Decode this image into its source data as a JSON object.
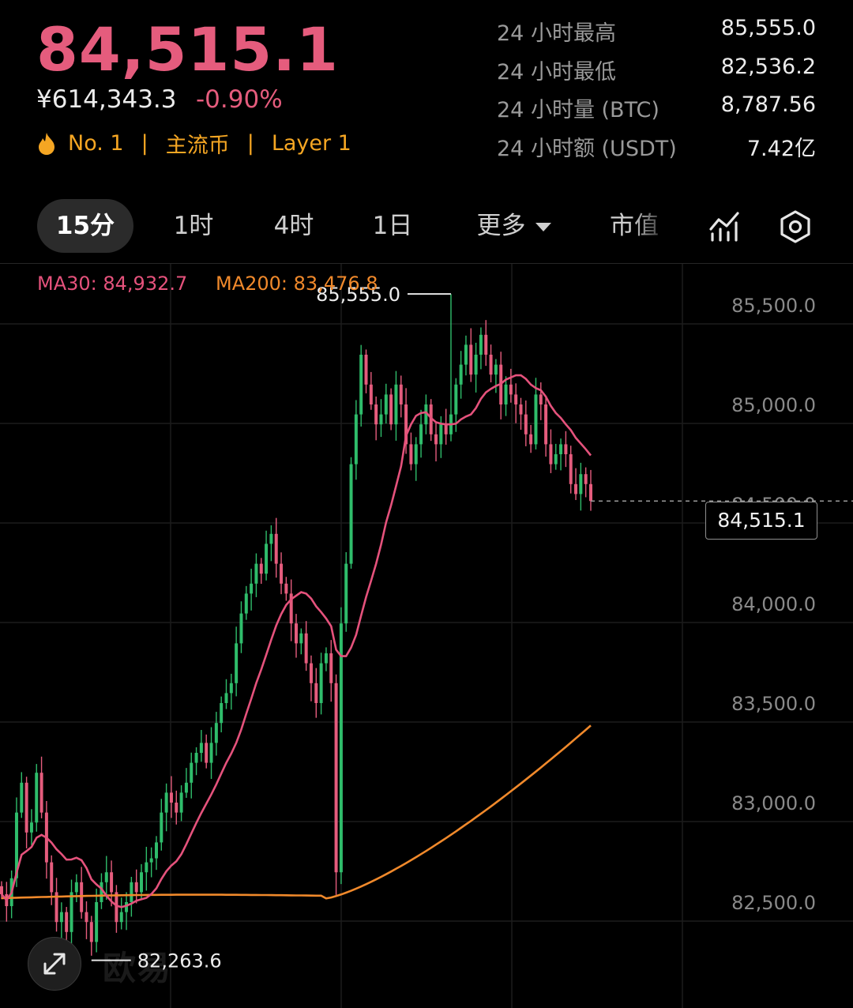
{
  "header": {
    "price": "84,515.1",
    "price_cny": "¥614,343.3",
    "change": "-0.90%",
    "tags": [
      "No. 1",
      "主流币",
      "Layer 1"
    ],
    "tag_icon": "flame-icon"
  },
  "stats": [
    {
      "label": "24 小时最高",
      "value": "85,555.0"
    },
    {
      "label": "24 小时最低",
      "value": "82,536.2"
    },
    {
      "label": "24 小时量 (BTC)",
      "value": "8,787.56"
    },
    {
      "label": "24 小时额 (USDT)",
      "value": "7.42亿"
    }
  ],
  "tabs": {
    "items": [
      "15分",
      "1时",
      "4时",
      "1日",
      "更多",
      "市值"
    ],
    "active": "15分"
  },
  "toolbar_icons": [
    "indicator-chart-icon",
    "settings-hexagon-icon"
  ],
  "chart": {
    "ma30_label": "MA30: 84,932.7",
    "ma200_label": "MA200: 83,476.8",
    "high_marker": "85,555.0",
    "low_marker": "82,263.6",
    "last_price_tag": "84,515.1",
    "watermark": "欧易",
    "colors": {
      "up": "#2fbd6b",
      "down": "#e55c7d",
      "ma30": "#e5527c",
      "ma200": "#f0892b"
    }
  },
  "chart_data": {
    "type": "candlestick",
    "interval": "15分",
    "yticks": [
      85500,
      85000,
      84500,
      84000,
      83500,
      83000,
      82500
    ],
    "ylim": [
      82300,
      85600
    ],
    "last": 84515.1,
    "high": 85555.0,
    "low": 82263.6,
    "closes": [
      82540,
      82480,
      82620,
      82950,
      83100,
      82850,
      82900,
      83150,
      82950,
      82700,
      82550,
      82400,
      82450,
      82350,
      82550,
      82600,
      82450,
      82400,
      82300,
      82500,
      82600,
      82650,
      82550,
      82400,
      82450,
      82500,
      82600,
      82550,
      82650,
      82700,
      82720,
      82800,
      82950,
      83050,
      83000,
      82950,
      83050,
      83100,
      83200,
      83250,
      83300,
      83200,
      83300,
      83400,
      83500,
      83550,
      83600,
      83800,
      83950,
      84050,
      84100,
      84200,
      84150,
      84300,
      84350,
      84200,
      84100,
      84050,
      83900,
      83800,
      83850,
      83700,
      83600,
      83500,
      83700,
      83750,
      83600,
      82650,
      83900,
      84200,
      84700,
      84950,
      85250,
      85100,
      85000,
      84900,
      84950,
      85050,
      84900,
      85100,
      85000,
      84800,
      84700,
      84800,
      84900,
      85000,
      84850,
      84800,
      84900,
      84850,
      84950,
      85100,
      85200,
      85300,
      85150,
      85250,
      85350,
      85250,
      85150,
      85200,
      85000,
      85100,
      85050,
      85000,
      84950,
      84850,
      84800,
      85050,
      85000,
      84800,
      84700,
      84750,
      84800,
      84750,
      84600,
      84550,
      84650,
      84600,
      84515
    ]
  }
}
